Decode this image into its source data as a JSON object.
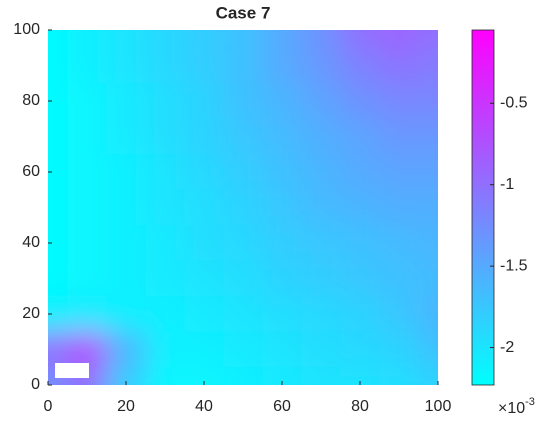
{
  "chart_data": {
    "type": "heatmap",
    "title": "Case 7",
    "x": [
      0,
      10,
      20,
      30,
      40,
      50,
      60,
      70,
      80,
      90,
      100
    ],
    "y": [
      0,
      10,
      20,
      30,
      40,
      50,
      60,
      70,
      80,
      90,
      100
    ],
    "z": [
      [
        -1.3,
        -1.0,
        -1.8,
        -2.15,
        -2.15,
        -2.1,
        -2.05,
        -2.0,
        -2.0,
        -1.95,
        -1.85
      ],
      [
        -1.0,
        -0.7,
        -1.6,
        -2.1,
        -2.1,
        -2.05,
        -2.0,
        -1.95,
        -1.9,
        -1.85,
        -1.7
      ],
      [
        -2.1,
        -2.05,
        -2.1,
        -2.1,
        -2.05,
        -2.0,
        -1.95,
        -1.9,
        -1.85,
        -1.75,
        -1.6
      ],
      [
        -2.2,
        -2.15,
        -2.1,
        -2.05,
        -2.0,
        -1.95,
        -1.85,
        -1.8,
        -1.75,
        -1.7,
        -1.65
      ],
      [
        -2.2,
        -2.15,
        -2.1,
        -2.05,
        -1.95,
        -1.9,
        -1.8,
        -1.75,
        -1.7,
        -1.65,
        -1.6
      ],
      [
        -2.2,
        -2.15,
        -2.1,
        -2.0,
        -1.95,
        -1.85,
        -1.75,
        -1.65,
        -1.6,
        -1.55,
        -1.55
      ],
      [
        -2.2,
        -2.15,
        -2.1,
        -2.0,
        -1.9,
        -1.8,
        -1.7,
        -1.6,
        -1.5,
        -1.45,
        -1.45
      ],
      [
        -2.2,
        -2.15,
        -2.05,
        -1.95,
        -1.85,
        -1.75,
        -1.65,
        -1.55,
        -1.45,
        -1.35,
        -1.35
      ],
      [
        -2.2,
        -2.15,
        -2.05,
        -1.95,
        -1.85,
        -1.7,
        -1.6,
        -1.45,
        -1.3,
        -1.2,
        -1.2
      ],
      [
        -2.2,
        -2.1,
        -2.0,
        -1.9,
        -1.8,
        -1.7,
        -1.5,
        -1.35,
        -1.15,
        -1.05,
        -1.1
      ],
      [
        -2.2,
        -2.1,
        -2.0,
        -1.9,
        -1.8,
        -1.7,
        -1.5,
        -1.3,
        -1.0,
        -0.9,
        -1.0
      ]
    ],
    "xlim": [
      0,
      100
    ],
    "ylim": [
      0,
      100
    ],
    "xticks": [
      0,
      20,
      40,
      60,
      80,
      100
    ],
    "yticks": [
      0,
      20,
      40,
      60,
      80,
      100
    ],
    "clim": [
      -2.23,
      -0.05
    ],
    "cticks": [
      -2,
      -1.5,
      -1,
      -0.5
    ],
    "colorbar_multiplier": "×10",
    "colorbar_exponent": "-3",
    "colormap": [
      "#00ffff",
      "#ff00ff"
    ]
  }
}
